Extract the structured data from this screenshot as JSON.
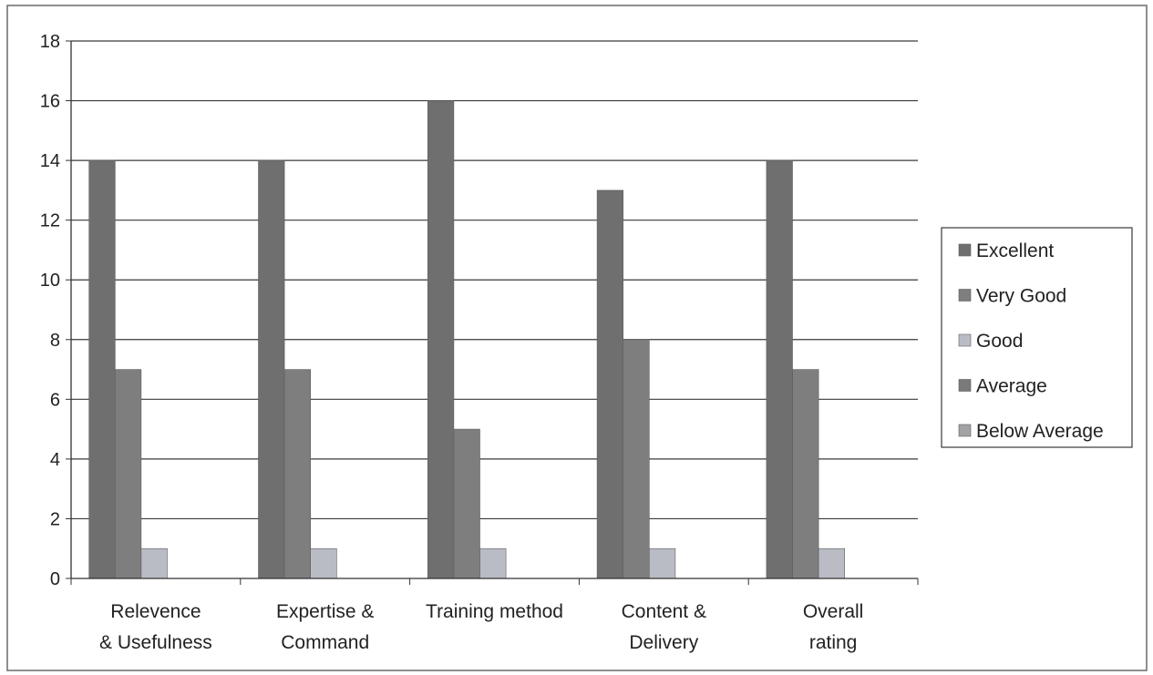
{
  "chart_data": {
    "type": "bar",
    "categories": [
      [
        "Relevence",
        "& Usefulness"
      ],
      [
        "Expertise &",
        "Command"
      ],
      [
        "Training method"
      ],
      [
        "Content &",
        "Delivery"
      ],
      [
        "Overall",
        "rating"
      ]
    ],
    "series": [
      {
        "name": "Excellent",
        "color": "#6f6f6f",
        "values": [
          14,
          14,
          16,
          13,
          14
        ]
      },
      {
        "name": "Very Good",
        "color": "#7e7e7e",
        "values": [
          7,
          7,
          5,
          8,
          7
        ]
      },
      {
        "name": "Good",
        "color": "#b9bcc4",
        "values": [
          1,
          1,
          1,
          1,
          1
        ]
      },
      {
        "name": "Average",
        "color": "#7a7a7a",
        "values": [
          0,
          0,
          0,
          0,
          0
        ]
      },
      {
        "name": "Below Average",
        "color": "#a3a3a6",
        "values": [
          0,
          0,
          0,
          0,
          0
        ]
      }
    ],
    "yticks": [
      0,
      2,
      4,
      6,
      8,
      10,
      12,
      14,
      16,
      18
    ],
    "ylim": [
      0,
      18
    ],
    "grid": true,
    "legend_position": "right",
    "title": "",
    "xlabel": "",
    "ylabel": ""
  }
}
